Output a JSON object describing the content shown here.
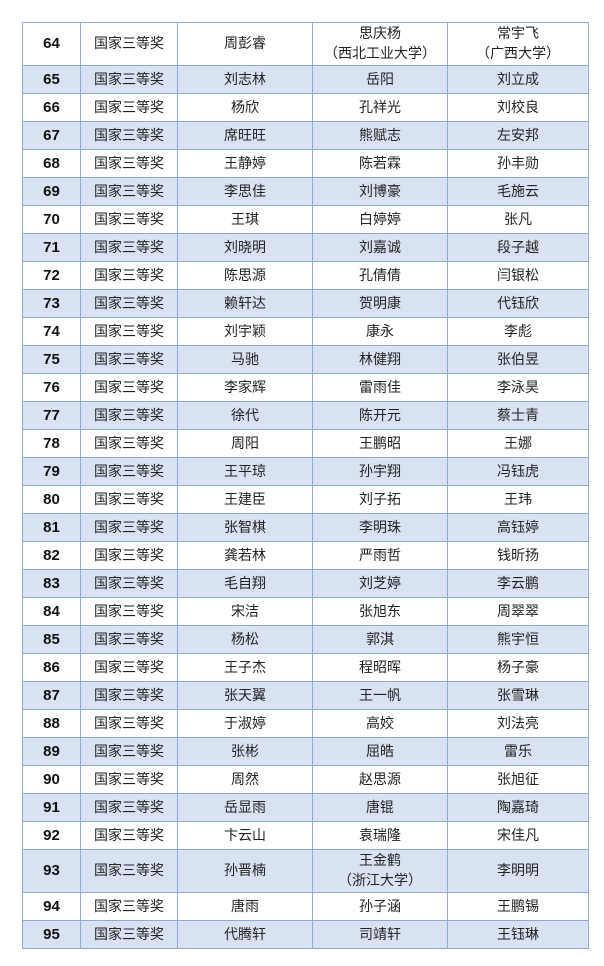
{
  "colors": {
    "border": "#8eaadb",
    "shade": "#d9e2f3"
  },
  "rows": [
    [
      "64",
      "国家三等奖",
      "周彭睿",
      "思庆杨\n（西北工业大学）",
      "常宇飞\n（广西大学）"
    ],
    [
      "65",
      "国家三等奖",
      "刘志林",
      "岳阳",
      "刘立成"
    ],
    [
      "66",
      "国家三等奖",
      "杨欣",
      "孔祥光",
      "刘校良"
    ],
    [
      "67",
      "国家三等奖",
      "席旺旺",
      "熊赋志",
      "左安邦"
    ],
    [
      "68",
      "国家三等奖",
      "王静婷",
      "陈若霖",
      "孙丰勋"
    ],
    [
      "69",
      "国家三等奖",
      "李思佳",
      "刘博豪",
      "毛施云"
    ],
    [
      "70",
      "国家三等奖",
      "王琪",
      "白婷婷",
      "张凡"
    ],
    [
      "71",
      "国家三等奖",
      "刘晓明",
      "刘嘉诚",
      "段子越"
    ],
    [
      "72",
      "国家三等奖",
      "陈思源",
      "孔倩倩",
      "闫银松"
    ],
    [
      "73",
      "国家三等奖",
      "赖轩达",
      "贺明康",
      "代钰欣"
    ],
    [
      "74",
      "国家三等奖",
      "刘宇颖",
      "康永",
      "李彪"
    ],
    [
      "75",
      "国家三等奖",
      "马驰",
      "林健翔",
      "张伯昱"
    ],
    [
      "76",
      "国家三等奖",
      "李家辉",
      "雷雨佳",
      "李泳昊"
    ],
    [
      "77",
      "国家三等奖",
      "徐代",
      "陈开元",
      "蔡士青"
    ],
    [
      "78",
      "国家三等奖",
      "周阳",
      "王鹏昭",
      "王娜"
    ],
    [
      "79",
      "国家三等奖",
      "王平琼",
      "孙宇翔",
      "冯钰虎"
    ],
    [
      "80",
      "国家三等奖",
      "王建臣",
      "刘子拓",
      "王玮"
    ],
    [
      "81",
      "国家三等奖",
      "张智棋",
      "李明珠",
      "高钰婷"
    ],
    [
      "82",
      "国家三等奖",
      "龚若林",
      "严雨哲",
      "钱昕扬"
    ],
    [
      "83",
      "国家三等奖",
      "毛自翔",
      "刘芝婷",
      "李云鹏"
    ],
    [
      "84",
      "国家三等奖",
      "宋洁",
      "张旭东",
      "周翠翠"
    ],
    [
      "85",
      "国家三等奖",
      "杨松",
      "郭淇",
      "熊宇恒"
    ],
    [
      "86",
      "国家三等奖",
      "王子杰",
      "程昭晖",
      "杨子豪"
    ],
    [
      "87",
      "国家三等奖",
      "张天翼",
      "王一帆",
      "张雪琳"
    ],
    [
      "88",
      "国家三等奖",
      "于淑婷",
      "高姣",
      "刘法亮"
    ],
    [
      "89",
      "国家三等奖",
      "张彬",
      "屈皓",
      "雷乐"
    ],
    [
      "90",
      "国家三等奖",
      "周然",
      "赵思源",
      "张旭征"
    ],
    [
      "91",
      "国家三等奖",
      "岳显雨",
      "唐锟",
      "陶嘉琦"
    ],
    [
      "92",
      "国家三等奖",
      "卞云山",
      "袁瑞隆",
      "宋佳凡"
    ],
    [
      "93",
      "国家三等奖",
      "孙晋楠",
      "王金鹤\n（浙江大学）",
      "李明明"
    ],
    [
      "94",
      "国家三等奖",
      "唐雨",
      "孙子涵",
      "王鹏锡"
    ],
    [
      "95",
      "国家三等奖",
      "代腾轩",
      "司靖轩",
      "王钰琳"
    ]
  ]
}
